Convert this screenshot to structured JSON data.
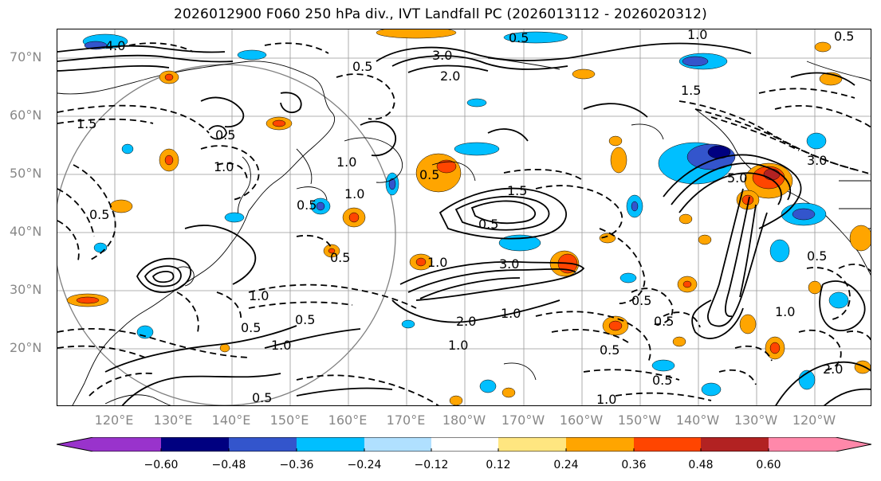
{
  "title": "2026012900 F060 250 hPa div., IVT Landfall PC (2026013112 - 2026020312)",
  "lat_labels": [
    "70°N",
    "60°N",
    "50°N",
    "40°N",
    "30°N",
    "20°N"
  ],
  "lon_labels": [
    "120°E",
    "130°E",
    "140°E",
    "150°E",
    "160°E",
    "170°E",
    "180°W",
    "170°W",
    "160°W",
    "150°W",
    "140°W",
    "130°W",
    "120°W"
  ],
  "colorbar": {
    "colors": [
      "#9933cc",
      "#000080",
      "#3355cc",
      "#00bfff",
      "#b0e0ff",
      "#ffffff",
      "#ffe680",
      "#ffa500",
      "#ff4500",
      "#b22222",
      "#ff88aa"
    ],
    "ticks": [
      "−0.60",
      "−0.48",
      "−0.36",
      "−0.24",
      "−0.12",
      "0.12",
      "0.24",
      "0.36",
      "0.48",
      "0.60"
    ]
  },
  "contour_labels": [
    "4.0",
    "0.5",
    "1.0",
    "3.0",
    "2.0",
    "1.5",
    "1.5",
    "0.5",
    "0.5",
    "1.0",
    "0.5",
    "0.5",
    "1.0",
    "0.5",
    "1.5",
    "3.0",
    "2.0",
    "1.0",
    "0.5",
    "0.5",
    "0.5",
    "5.0",
    "1.0",
    "3.0",
    "0.5",
    "0.5",
    "0.5",
    "1.0",
    "0.5",
    "1.0",
    "0.5",
    "0.5",
    "0.5",
    "0.5",
    "1.0",
    "1.0",
    "2.0",
    "1.0",
    "1.0"
  ]
}
